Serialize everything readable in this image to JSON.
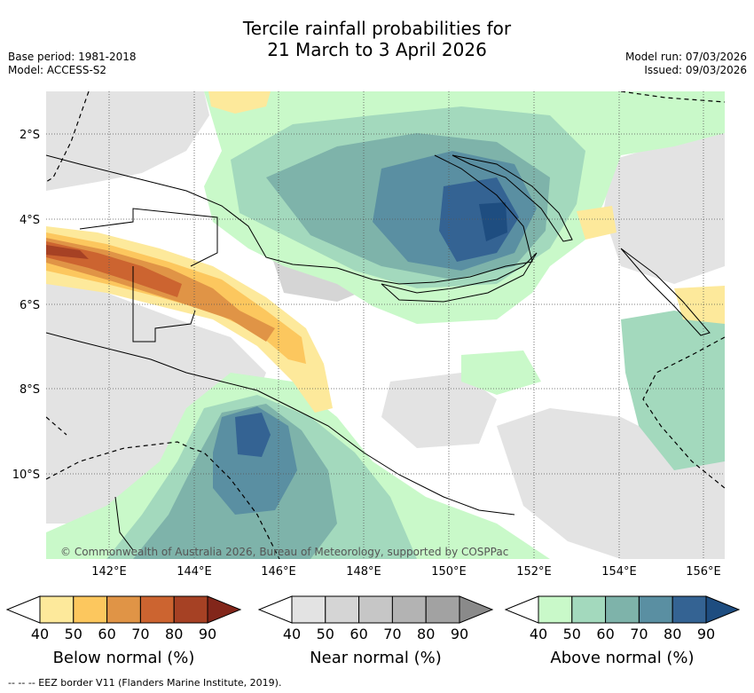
{
  "title": {
    "line1": "Tercile rainfall probabilities for",
    "line2": "21 March to 3 April 2026"
  },
  "meta": {
    "base_period": "Base period: 1981-2018",
    "model": "Model: ACCESS-S2",
    "model_run": "Model run: 07/03/2026",
    "issued": "Issued: 09/03/2026"
  },
  "map": {
    "lon_labels": [
      "142°E",
      "144°E",
      "146°E",
      "148°E",
      "150°E",
      "152°E",
      "154°E",
      "156°E"
    ],
    "lat_labels": [
      "2°S",
      "4°S",
      "6°S",
      "8°S",
      "10°S"
    ],
    "copyright": "© Commonwealth of Australia 2026, Bureau of Meteorology, supported by COSPPac"
  },
  "legends": [
    {
      "title": "Below normal (%)",
      "ticks": [
        "40",
        "50",
        "60",
        "70",
        "80",
        "90"
      ],
      "colors": [
        "#fde99b",
        "#fcc75e",
        "#e09446",
        "#cc6430",
        "#a64124",
        "#82261a"
      ]
    },
    {
      "title": "Near normal (%)",
      "ticks": [
        "40",
        "50",
        "60",
        "70",
        "80",
        "90"
      ],
      "colors": [
        "#e3e3e3",
        "#d5d5d5",
        "#c6c6c6",
        "#b3b3b3",
        "#a2a2a2",
        "#8a8a8a"
      ]
    },
    {
      "title": "Above normal (%)",
      "ticks": [
        "40",
        "50",
        "60",
        "70",
        "80",
        "90"
      ],
      "colors": [
        "#c9f9c9",
        "#a3d9bd",
        "#7eb3aa",
        "#5a8fa2",
        "#346393",
        "#1e4d80"
      ]
    }
  ],
  "footer": "--  --  -- EEZ border V11 (Flanders Marine Institute, 2019)."
}
